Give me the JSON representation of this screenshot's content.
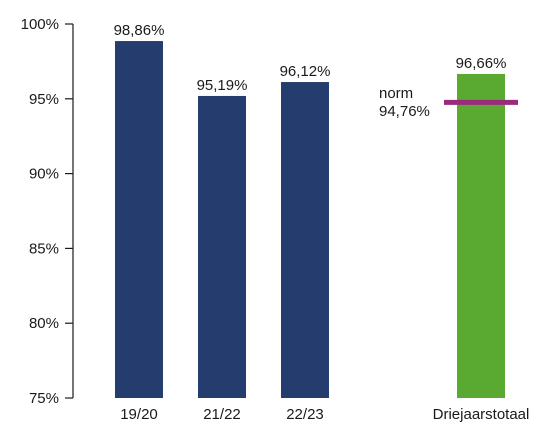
{
  "chart_data": {
    "type": "bar",
    "categories": [
      "19/20",
      "21/22",
      "22/23",
      "Driejaarstotaal"
    ],
    "values": [
      98.86,
      95.19,
      96.12,
      96.66
    ],
    "value_labels": [
      "98,86%",
      "95,19%",
      "96,12%",
      "96,66%"
    ],
    "ylim": [
      75,
      100
    ],
    "yticks": [
      75,
      80,
      85,
      90,
      95,
      100
    ],
    "ytick_labels": [
      "75%",
      "80%",
      "85%",
      "90%",
      "95%",
      "100%"
    ],
    "grid": false,
    "colors": {
      "bars": "#243c6e",
      "total_bar": "#5aaa32",
      "norm_line": "#9b2a7d",
      "axis": "#1a1a1a"
    },
    "norm": {
      "label": "norm",
      "value": 94.76,
      "value_label": "94,76%"
    }
  }
}
